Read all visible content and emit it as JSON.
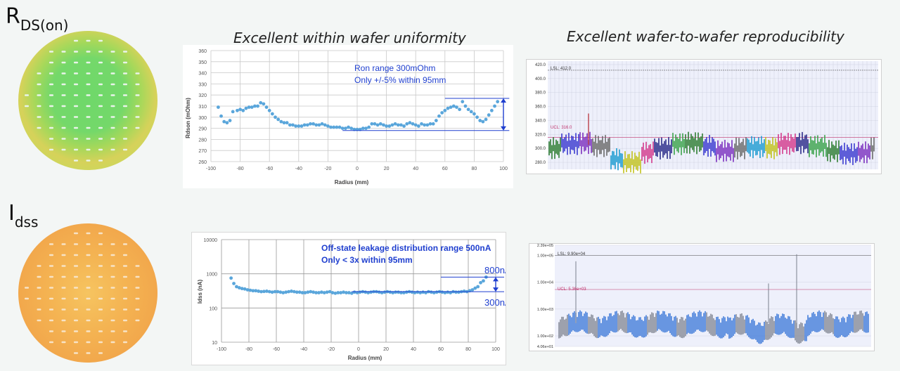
{
  "labels": {
    "rdson_main": "R",
    "rdson_sub": "DS(on)",
    "idss_main": "I",
    "idss_sub": "dss"
  },
  "headings": {
    "uniformity": "Excellent within wafer uniformity",
    "reproducibility": "Excellent wafer-to-wafer reproducibility"
  },
  "colors": {
    "point": "#5aa6db",
    "annotation": "#1f3fcf",
    "grid": "#c9c9c9",
    "wafer_rdson_center": "#6cd466",
    "wafer_rdson_edge": "#c9d84e",
    "wafer_idss": "#f0a94a"
  },
  "chart_data": [
    {
      "id": "rdson_radius",
      "type": "scatter",
      "xlabel": "Radius (mm)",
      "ylabel": "Rdson (mOhm)",
      "xlim": [
        -100,
        100
      ],
      "ylim": [
        260,
        360
      ],
      "xticks": [
        -100,
        -80,
        -60,
        -40,
        -20,
        0,
        20,
        40,
        60,
        80,
        100
      ],
      "yticks": [
        260,
        270,
        280,
        290,
        300,
        310,
        320,
        330,
        340,
        350,
        360
      ],
      "annotation_lines": [
        "Ron range 300mOhm",
        "Only +/-5% within 95mm"
      ],
      "range_markers": {
        "upper": 317,
        "lower": 288
      },
      "x": [
        -95,
        -93,
        -91,
        -89,
        -87,
        -85,
        -82,
        -80,
        -78,
        -76,
        -74,
        -72,
        -70,
        -68,
        -66,
        -64,
        -62,
        -60,
        -58,
        -56,
        -54,
        -52,
        -50,
        -48,
        -46,
        -44,
        -42,
        -40,
        -38,
        -36,
        -34,
        -32,
        -30,
        -28,
        -26,
        -24,
        -22,
        -20,
        -18,
        -16,
        -14,
        -12,
        -10,
        -8,
        -6,
        -4,
        -2,
        0,
        2,
        4,
        6,
        8,
        10,
        12,
        14,
        16,
        18,
        20,
        22,
        24,
        26,
        28,
        30,
        32,
        34,
        36,
        38,
        40,
        42,
        44,
        46,
        48,
        50,
        52,
        54,
        56,
        58,
        60,
        62,
        64,
        66,
        68,
        70,
        72,
        74,
        76,
        78,
        80,
        82,
        84,
        86,
        88,
        90,
        92,
        94,
        96
      ],
      "y": [
        309,
        301,
        296,
        295,
        297,
        305,
        306,
        307,
        306,
        308,
        309,
        309,
        310,
        310,
        313,
        312,
        309,
        306,
        303,
        300,
        298,
        296,
        295,
        295,
        293,
        293,
        292,
        292,
        292,
        293,
        293,
        294,
        294,
        293,
        293,
        294,
        293,
        292,
        291,
        291,
        291,
        291,
        290,
        290,
        291,
        290,
        289,
        289,
        289,
        290,
        290,
        291,
        294,
        294,
        293,
        294,
        293,
        292,
        292,
        293,
        294,
        293,
        293,
        292,
        294,
        295,
        294,
        293,
        292,
        294,
        293,
        293,
        294,
        294,
        297,
        301,
        304,
        306,
        308,
        309,
        310,
        309,
        307,
        314,
        310,
        307,
        305,
        303,
        300,
        297,
        296,
        298,
        302,
        306,
        310,
        314
      ]
    },
    {
      "id": "idss_radius",
      "type": "scatter",
      "xlabel": "Radius (mm)",
      "ylabel": "Idss (nA)",
      "yscale": "log",
      "xlim": [
        -100,
        100
      ],
      "ylim": [
        10,
        10000
      ],
      "xticks": [
        -100,
        -80,
        -60,
        -40,
        -20,
        0,
        20,
        40,
        60,
        80,
        100
      ],
      "yticks": [
        10,
        100,
        1000,
        10000
      ],
      "annotation_lines": [
        "Off-state leakage distribution range 500nA",
        "Only < 3x within 95mm"
      ],
      "range_labels": {
        "upper": "800nA",
        "lower": "300nA"
      },
      "range_markers": {
        "upper": 800,
        "lower": 300
      },
      "x": [
        -93,
        -91,
        -89,
        -87,
        -85,
        -83,
        -81,
        -79,
        -77,
        -75,
        -73,
        -71,
        -69,
        -67,
        -65,
        -63,
        -61,
        -59,
        -57,
        -55,
        -53,
        -51,
        -49,
        -47,
        -45,
        -43,
        -41,
        -39,
        -37,
        -35,
        -33,
        -31,
        -29,
        -27,
        -25,
        -23,
        -21,
        -19,
        -17,
        -15,
        -13,
        -11,
        -9,
        -7,
        -5,
        -3,
        -1,
        1,
        3,
        5,
        7,
        9,
        11,
        13,
        15,
        17,
        19,
        21,
        23,
        25,
        27,
        29,
        31,
        33,
        35,
        37,
        39,
        41,
        43,
        45,
        47,
        49,
        51,
        53,
        55,
        57,
        59,
        61,
        63,
        65,
        67,
        69,
        71,
        73,
        75,
        77,
        79,
        81,
        83,
        85,
        87,
        89,
        91,
        93
      ],
      "y": [
        750,
        520,
        420,
        390,
        370,
        360,
        340,
        330,
        320,
        320,
        310,
        300,
        305,
        310,
        300,
        290,
        300,
        300,
        290,
        280,
        290,
        300,
        310,
        300,
        290,
        290,
        280,
        280,
        290,
        300,
        290,
        280,
        280,
        290,
        280,
        290,
        300,
        280,
        270,
        280,
        280,
        290,
        280,
        280,
        270,
        290,
        280,
        290,
        300,
        290,
        280,
        290,
        300,
        300,
        290,
        280,
        290,
        300,
        290,
        280,
        290,
        290,
        280,
        280,
        290,
        300,
        290,
        280,
        290,
        280,
        290,
        280,
        300,
        290,
        280,
        290,
        300,
        290,
        280,
        290,
        280,
        300,
        290,
        290,
        300,
        310,
        300,
        320,
        340,
        380,
        420,
        550,
        620,
        800
      ]
    },
    {
      "id": "rdson_wafer_trend",
      "type": "line",
      "yticks": [
        280.0,
        300.0,
        320.0,
        340.0,
        360.0,
        380.0,
        400.0,
        420.0
      ],
      "ylim": [
        270,
        425
      ],
      "annotations": [
        "LSL: 412.0",
        "UCL: 316.0"
      ],
      "limits": {
        "lsl": 412,
        "ucl": 316
      }
    },
    {
      "id": "idss_wafer_trend",
      "type": "line",
      "yscale": "log",
      "yticks": [
        "2.39e+05",
        "1.00e+05",
        "1.00e+04",
        "1.00e+03",
        "1.00e+02",
        "4.06e+01"
      ],
      "annotations": [
        "LSL: 9.90e+04",
        "UCL: 5.36e+03"
      ],
      "limits": {
        "lsl": 99000,
        "ucl": 5360
      }
    }
  ]
}
